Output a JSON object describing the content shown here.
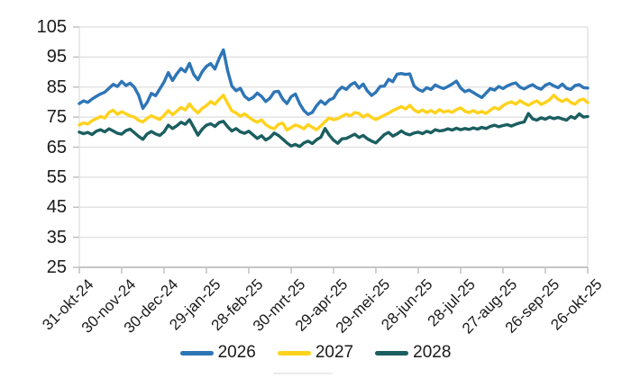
{
  "chart_data": {
    "type": "line",
    "title": "",
    "xlabel": "",
    "ylabel": "",
    "ylim": [
      25,
      105
    ],
    "y_ticks": [
      105,
      95,
      85,
      75,
      65,
      55,
      45,
      35,
      25
    ],
    "x_tick_labels": [
      "31-okt-24",
      "30-nov-24",
      "30-dec-24",
      "29-jan-25",
      "28-feb-25",
      "30-mrt-25",
      "29-apr-25",
      "29-mei-25",
      "28-jun-25",
      "28-jul-25",
      "27-aug-25",
      "26-sep-25",
      "26-okt-25"
    ],
    "grid": "horizontal",
    "legend_position": "bottom",
    "series": [
      {
        "name": "2026",
        "color": "#2E75B6",
        "values": [
          79.5,
          80.4,
          79.9,
          81.0,
          81.9,
          82.7,
          83.3,
          84.6,
          85.9,
          85.2,
          86.9,
          85.5,
          86.3,
          84.9,
          82.3,
          77.9,
          79.9,
          82.9,
          82.1,
          84.4,
          86.7,
          89.8,
          87.2,
          89.4,
          91.2,
          90.1,
          92.9,
          89.2,
          87.4,
          90.1,
          91.9,
          92.8,
          91.0,
          94.5,
          97.4,
          90.5,
          85.3,
          83.8,
          84.6,
          82.0,
          80.8,
          81.5,
          83.0,
          81.9,
          80.2,
          81.3,
          83.4,
          83.6,
          81.0,
          79.5,
          81.8,
          82.7,
          79.5,
          77.2,
          75.9,
          76.6,
          78.8,
          80.4,
          79.3,
          80.7,
          81.3,
          83.7,
          85.0,
          84.2,
          85.7,
          86.5,
          84.7,
          86.0,
          83.7,
          82.2,
          83.3,
          85.2,
          85.3,
          87.6,
          86.8,
          89.3,
          89.5,
          89.2,
          89.4,
          85.4,
          84.2,
          83.6,
          84.8,
          84.2,
          85.7,
          85.0,
          84.5,
          85.2,
          86.0,
          87.0,
          84.7,
          83.5,
          84.0,
          83.2,
          82.3,
          81.5,
          83.0,
          84.5,
          84.0,
          85.2,
          84.5,
          85.4,
          86.0,
          86.4,
          85.0,
          84.4,
          85.2,
          85.8,
          84.8,
          84.3,
          85.6,
          86.2,
          85.4,
          84.8,
          86.0,
          84.6,
          84.2,
          85.5,
          85.8,
          84.8,
          84.7
        ]
      },
      {
        "name": "2027",
        "color": "#FFD21C",
        "values": [
          72.4,
          73.1,
          72.7,
          73.8,
          74.5,
          75.2,
          74.7,
          76.6,
          77.3,
          75.9,
          76.8,
          76.1,
          75.4,
          75.0,
          73.9,
          73.4,
          74.6,
          75.5,
          74.8,
          74.2,
          75.6,
          77.2,
          75.8,
          77.0,
          78.2,
          77.4,
          79.4,
          77.6,
          76.4,
          77.9,
          78.8,
          80.2,
          79.3,
          80.9,
          82.3,
          79.6,
          77.1,
          76.4,
          75.3,
          76.1,
          75.0,
          74.0,
          73.3,
          74.1,
          72.5,
          71.6,
          71.1,
          72.6,
          73.0,
          70.7,
          71.5,
          72.4,
          71.9,
          71.1,
          72.5,
          71.6,
          70.8,
          72.1,
          73.5,
          74.7,
          74.1,
          74.5,
          75.3,
          76.0,
          75.4,
          76.5,
          76.2,
          75.0,
          75.9,
          74.9,
          74.2,
          74.9,
          75.7,
          76.3,
          77.2,
          77.8,
          78.5,
          77.7,
          78.9,
          77.4,
          76.6,
          77.4,
          76.5,
          77.2,
          76.4,
          77.5,
          76.7,
          77.1,
          76.6,
          77.5,
          78.1,
          77.0,
          76.5,
          77.2,
          76.4,
          76.9,
          76.2,
          77.3,
          78.2,
          77.6,
          78.8,
          79.6,
          80.1,
          79.3,
          80.5,
          79.6,
          78.9,
          79.8,
          80.4,
          79.2,
          79.9,
          80.8,
          82.3,
          80.9,
          80.2,
          81.0,
          79.9,
          79.3,
          80.6,
          81.0,
          79.8
        ]
      },
      {
        "name": "2028",
        "color": "#1B5E60",
        "values": [
          70.0,
          69.5,
          69.9,
          69.2,
          70.3,
          70.8,
          70.1,
          71.1,
          70.4,
          69.6,
          69.3,
          70.5,
          71.0,
          69.8,
          68.6,
          67.6,
          69.4,
          70.2,
          69.4,
          68.9,
          70.1,
          72.3,
          71.2,
          72.1,
          73.3,
          72.6,
          74.1,
          71.6,
          69.0,
          71.0,
          72.3,
          72.8,
          71.9,
          73.2,
          73.6,
          71.8,
          70.4,
          71.2,
          70.1,
          69.6,
          70.3,
          69.1,
          67.9,
          68.8,
          67.4,
          68.2,
          69.7,
          68.9,
          67.7,
          66.4,
          65.4,
          65.9,
          65.2,
          66.4,
          67.0,
          66.2,
          67.5,
          68.3,
          71.2,
          69.0,
          67.3,
          66.3,
          67.8,
          67.9,
          68.6,
          69.3,
          68.2,
          68.9,
          67.8,
          67.0,
          66.4,
          67.8,
          69.2,
          69.9,
          68.7,
          69.4,
          70.4,
          69.5,
          69.1,
          69.7,
          70.0,
          69.5,
          70.3,
          69.8,
          70.8,
          70.4,
          70.6,
          71.1,
          70.7,
          71.3,
          70.8,
          71.2,
          70.9,
          71.4,
          71.0,
          71.6,
          71.2,
          71.9,
          72.3,
          71.8,
          72.2,
          72.5,
          72.0,
          72.6,
          73.1,
          73.4,
          76.2,
          74.4,
          74.0,
          74.8,
          74.3,
          75.0,
          74.5,
          74.9,
          74.4,
          74.0,
          75.2,
          74.6,
          76.1,
          75.0,
          75.2
        ]
      }
    ]
  },
  "colors": {
    "background": "#FFFFFF",
    "gridline": "#DEDEDE",
    "axis_line": "#C6C6C6",
    "tick_mark": "#C0C0C0",
    "label_text": "#1A1A1A"
  }
}
